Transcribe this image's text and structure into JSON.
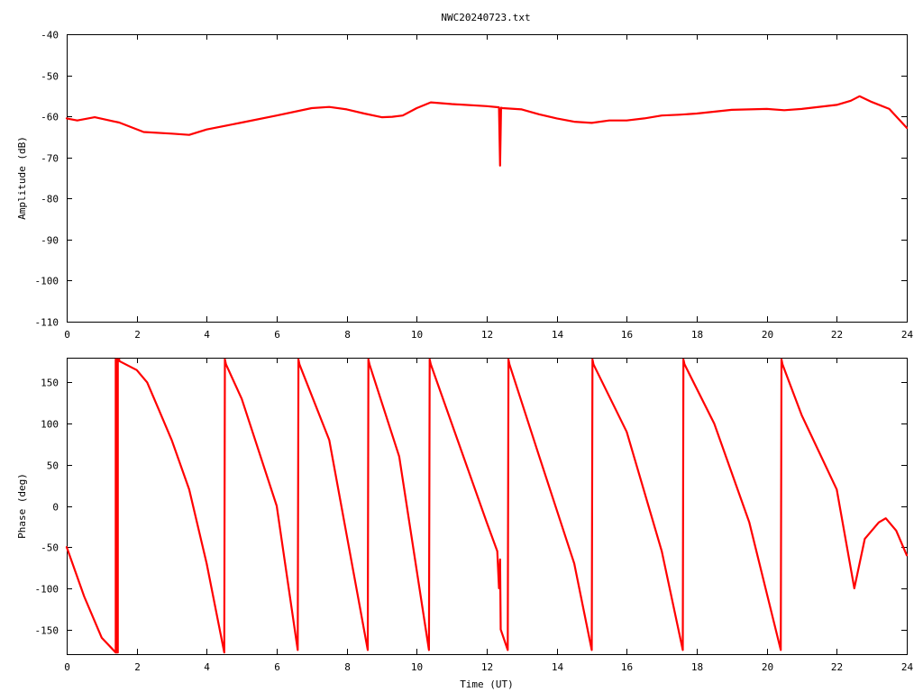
{
  "title": "NWC20240723.txt",
  "chart_data": [
    {
      "type": "line",
      "title": "NWC20240723.txt",
      "xlabel": "",
      "ylabel": "Amplitude (dB)",
      "xlim": [
        0,
        24
      ],
      "ylim": [
        -110,
        -40
      ],
      "xticks": [
        "0",
        "2",
        "4",
        "6",
        "8",
        "10",
        "12",
        "14",
        "16",
        "18",
        "20",
        "22",
        "24"
      ],
      "yticks": [
        "-40",
        "-50",
        "-60",
        "-70",
        "-80",
        "-90",
        "-100",
        "-110"
      ],
      "grid": false,
      "legend": "none",
      "color": "#ff0000",
      "series": [
        {
          "x": [
            0,
            0.3,
            0.8,
            1.5,
            2.2,
            3.0,
            3.5,
            4.0,
            5.0,
            6.0,
            7.0,
            7.5,
            8.0,
            8.5,
            9.0,
            9.3,
            9.6,
            10.0,
            10.4,
            11.0,
            12.0,
            12.35,
            12.38,
            12.41,
            12.45,
            13.0,
            13.5,
            14.0,
            14.5,
            15.0,
            15.5,
            16.0,
            16.5,
            17.0,
            17.5,
            18.0,
            19.0,
            20.0,
            20.5,
            21.0,
            22.0,
            22.4,
            22.65,
            23.0,
            23.5,
            24.0
          ],
          "y": [
            -60.5,
            -61,
            -60.2,
            -61.5,
            -63.8,
            -64.2,
            -64.5,
            -63.2,
            -61.5,
            -59.8,
            -58,
            -57.7,
            -58.3,
            -59.3,
            -60.2,
            -60.1,
            -59.8,
            -58,
            -56.6,
            -57,
            -57.5,
            -57.8,
            -72,
            -57.9,
            -58,
            -58.3,
            -59.5,
            -60.5,
            -61.3,
            -61.6,
            -61,
            -61,
            -60.5,
            -59.8,
            -59.6,
            -59.3,
            -58.4,
            -58.2,
            -58.5,
            -58.2,
            -57.2,
            -56.2,
            -55.1,
            -56.5,
            -58.2,
            -62.8
          ]
        }
      ]
    },
    {
      "type": "line",
      "title": "",
      "xlabel": "Time (UT)",
      "ylabel": "Phase (deg)",
      "xlim": [
        0,
        24
      ],
      "ylim": [
        -180,
        180
      ],
      "xticks": [
        "0",
        "2",
        "4",
        "6",
        "8",
        "10",
        "12",
        "14",
        "16",
        "18",
        "20",
        "22",
        "24"
      ],
      "yticks": [
        "150",
        "100",
        "50",
        "0",
        "-50",
        "-100",
        "-150"
      ],
      "grid": false,
      "legend": "none",
      "color": "#ff0000",
      "series": [
        {
          "x": [
            0,
            0.5,
            1.0,
            1.4,
            1.4,
            1.43,
            1.43,
            1.46,
            1.46,
            1.5,
            1.5,
            2.0,
            2.3,
            2.6,
            3.0,
            3.5,
            4.0,
            4.5,
            4.52,
            4.55,
            5.0,
            6.0,
            6.6,
            6.62,
            6.65,
            7.5,
            8.6,
            8.62,
            8.65,
            9.5,
            10.35,
            10.37,
            10.4,
            11.0,
            12.0,
            12.3,
            12.35,
            12.38,
            12.4,
            12.6,
            12.62,
            12.65,
            13.5,
            14.5,
            15.0,
            15.02,
            15.05,
            16.0,
            17.0,
            17.6,
            17.62,
            17.65,
            18.5,
            19.5,
            20.4,
            20.42,
            20.45,
            21.0,
            22.0,
            22.5,
            22.8,
            23.2,
            23.4,
            23.7,
            24.0
          ],
          "y": [
            -50,
            -110,
            -160,
            -178,
            178,
            178,
            -178,
            -178,
            178,
            178,
            176,
            165,
            150,
            120,
            80,
            20,
            -70,
            -178,
            178,
            172,
            130,
            0,
            -175,
            178,
            172,
            80,
            -175,
            178,
            172,
            60,
            -175,
            178,
            172,
            100,
            -20,
            -55,
            -100,
            -65,
            -150,
            -175,
            178,
            172,
            60,
            -70,
            -175,
            178,
            172,
            90,
            -55,
            -175,
            178,
            172,
            100,
            -20,
            -175,
            178,
            172,
            110,
            20,
            -100,
            -40,
            -20,
            -15,
            -30,
            -60
          ]
        }
      ]
    }
  ]
}
